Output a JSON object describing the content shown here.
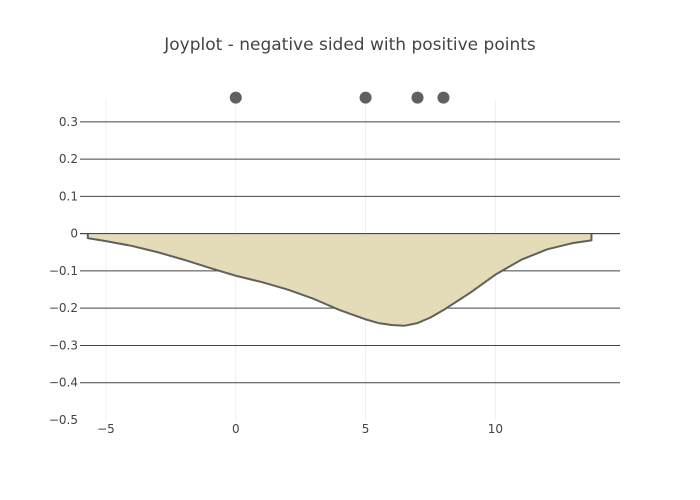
{
  "chart_data": {
    "type": "area",
    "title": "Joyplot - negative sided with positive points",
    "xlabel": "",
    "ylabel": "",
    "xlim": [
      -6.0,
      14.8
    ],
    "ylim": [
      -0.5,
      0.38
    ],
    "x_ticks": [
      -5,
      0,
      5,
      10
    ],
    "x_tick_labels": [
      "−5",
      "0",
      "5",
      "10"
    ],
    "y_ticks": [
      0.3,
      0.2,
      0.1,
      0,
      -0.1,
      -0.2,
      -0.3,
      -0.4,
      -0.5
    ],
    "y_tick_labels": [
      "0.3",
      "0.2",
      "0.1",
      "0",
      "−0.1",
      "−0.2",
      "−0.3",
      "−0.4",
      "−0.5"
    ],
    "y_grid_lines": [
      0.3,
      0.2,
      0.1,
      0,
      -0.1,
      -0.2,
      -0.3,
      -0.4
    ],
    "grid": true,
    "legend": "none",
    "series": [
      {
        "kind": "density",
        "x": [
          -5.7,
          -5.0,
          -4.0,
          -3.0,
          -2.0,
          -1.0,
          0.0,
          1.0,
          2.0,
          3.0,
          4.0,
          5.0,
          5.5,
          6.0,
          6.5,
          7.0,
          7.5,
          8.0,
          9.0,
          10.0,
          11.0,
          12.0,
          13.0,
          13.7
        ],
        "y": [
          -0.012,
          -0.02,
          -0.033,
          -0.05,
          -0.07,
          -0.092,
          -0.113,
          -0.13,
          -0.15,
          -0.175,
          -0.205,
          -0.23,
          -0.24,
          -0.245,
          -0.247,
          -0.24,
          -0.225,
          -0.205,
          -0.16,
          -0.11,
          -0.07,
          -0.042,
          -0.025,
          -0.018
        ],
        "fill": "#e4dbb8",
        "line_color": "#606060"
      },
      {
        "kind": "points",
        "x": [
          0,
          5,
          7,
          8
        ],
        "y": [
          0.365,
          0.365,
          0.365,
          0.365
        ],
        "color": "#606060"
      }
    ]
  }
}
